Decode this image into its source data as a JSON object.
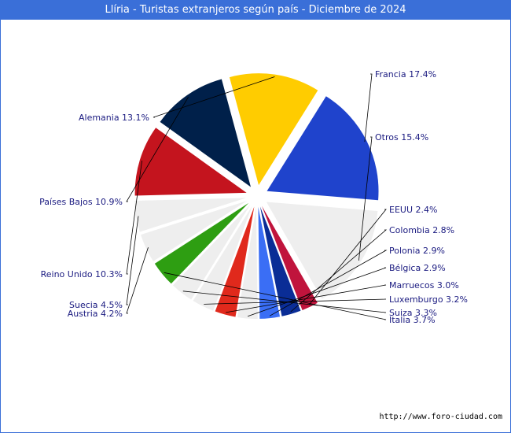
{
  "title": "Llíria - Turistas extranjeros según país - Diciembre de 2024",
  "footer": "http://www.foro-ciudad.com",
  "chart_data": {
    "type": "pie",
    "title": "Llíria - Turistas extranjeros según país - Diciembre de 2024",
    "slices": [
      {
        "label": "Francia",
        "value": 17.4,
        "display": "Francia 17.4%",
        "color": "#1f43cc"
      },
      {
        "label": "Otros",
        "value": 15.4,
        "display": "Otros 15.4%",
        "color": "#eeeeee"
      },
      {
        "label": "EEUU",
        "value": 2.4,
        "display": "EEUU 2.4%",
        "color": "#c0143c"
      },
      {
        "label": "Colombia",
        "value": 2.8,
        "display": "Colombia 2.8%",
        "color": "#0a2d96"
      },
      {
        "label": "Polonia",
        "value": 2.9,
        "display": "Polonia 2.9%",
        "color": "#3a6ef5"
      },
      {
        "label": "Bélgica",
        "value": 2.9,
        "display": "Bélgica 2.9%",
        "color": "#eeeeee"
      },
      {
        "label": "Marruecos",
        "value": 3.0,
        "display": "Marruecos 3.0%",
        "color": "#e0291c"
      },
      {
        "label": "Luxemburgo",
        "value": 3.2,
        "display": "Luxemburgo 3.2%",
        "color": "#eeeeee"
      },
      {
        "label": "Suiza",
        "value": 3.3,
        "display": "Suiza 3.3%",
        "color": "#eeeeee"
      },
      {
        "label": "Italia",
        "value": 3.7,
        "display": "Italia 3.7%",
        "color": "#2e9e12"
      },
      {
        "label": "Austria",
        "value": 4.2,
        "display": "Austria 4.2%",
        "color": "#eeeeee"
      },
      {
        "label": "Suecia",
        "value": 4.5,
        "display": "Suecia 4.5%",
        "color": "#eeeeee"
      },
      {
        "label": "Reino Unido",
        "value": 10.3,
        "display": "Reino Unido 10.3%",
        "color": "#c4141e"
      },
      {
        "label": "Países Bajos",
        "value": 10.9,
        "display": "Países Bajos 10.9%",
        "color": "#00204a"
      },
      {
        "label": "Alemania",
        "value": 13.1,
        "display": "Alemania 13.1%",
        "color": "#ffcc00"
      }
    ]
  }
}
